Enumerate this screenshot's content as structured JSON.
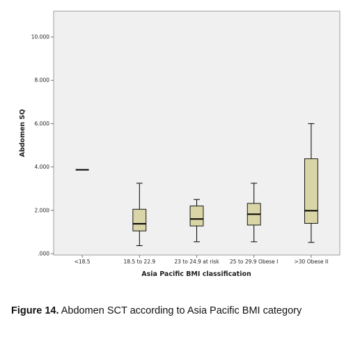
{
  "chart_data": {
    "type": "box",
    "ylabel": "Abdomen SQ",
    "xlabel": "Asia Pacific BMI classification",
    "ylim": [
      0,
      11000
    ],
    "yticks": [
      {
        "value": 0,
        "label": ".000"
      },
      {
        "value": 2000,
        "label": "2.000"
      },
      {
        "value": 4000,
        "label": "4.000"
      },
      {
        "value": 6000,
        "label": "6.000"
      },
      {
        "value": 8000,
        "label": "8.000"
      },
      {
        "value": 10000,
        "label": "10.000"
      }
    ],
    "categories": [
      "<18.5",
      "18.5 to 22.9",
      "23 to 24.9 at risk",
      "25 to 29.9 Obese I",
      ">30 Obese II"
    ],
    "boxes": [
      {
        "min": 3870,
        "q1": 3870,
        "median": 3870,
        "q3": 3870,
        "max": 3870
      },
      {
        "min": 370,
        "q1": 1050,
        "median": 1380,
        "q3": 2050,
        "max": 3250
      },
      {
        "min": 550,
        "q1": 1280,
        "median": 1600,
        "q3": 2200,
        "max": 2500
      },
      {
        "min": 550,
        "q1": 1320,
        "median": 1820,
        "q3": 2320,
        "max": 3250
      },
      {
        "min": 520,
        "q1": 1400,
        "median": 1980,
        "q3": 4380,
        "max": 6000
      }
    ],
    "colors": {
      "plot_bg": "#f0f0f0",
      "box_fill": "#d9d5a6",
      "stroke": "#000000"
    }
  },
  "caption": {
    "label": "Figure 14.",
    "text": " Abdomen SCT according to Asia Pacific  BMI category"
  }
}
